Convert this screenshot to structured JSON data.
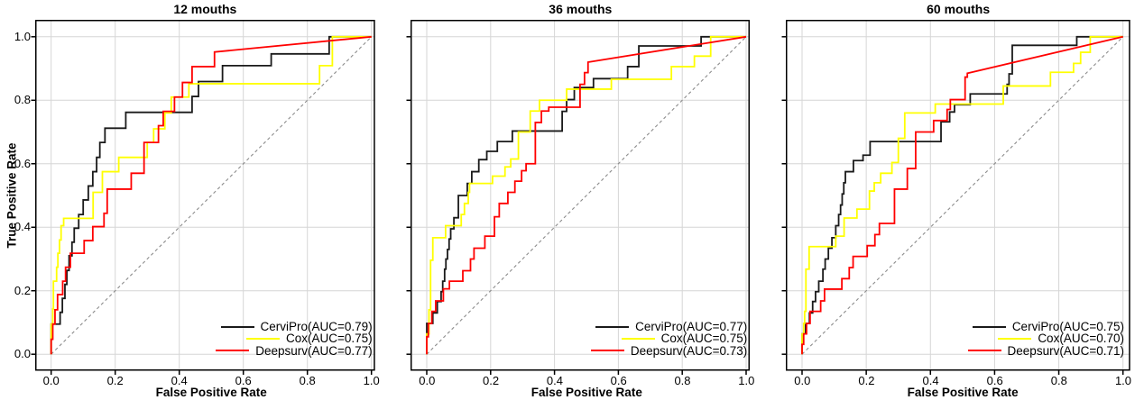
{
  "figure": {
    "x_axis_label": "False Positive Rate",
    "y_axis_label": "True Positive Rate",
    "x_tick_labels": [
      "0.0",
      "0.2",
      "0.4",
      "0.6",
      "0.8",
      "1.0"
    ],
    "y_tick_labels": [
      "0.0",
      "0.2",
      "0.4",
      "0.6",
      "0.8",
      "1.0"
    ],
    "background_color": "#ffffff",
    "grid_color": "#d6d6d6",
    "border_color": "#000000",
    "reference_line_color": "#8c8c8c",
    "series_colors": {
      "CerviPro": "#1a1a1a",
      "Cox": "#ffff00",
      "Deepsurv": "#ff0000"
    }
  },
  "chart_data": [
    {
      "type": "line",
      "title": "12 mouths",
      "xlabel": "False Positive Rate",
      "ylabel": "True Positive Rate",
      "xlim": [
        0,
        1
      ],
      "ylim": [
        0,
        1
      ],
      "grid": true,
      "diagonal_reference": true,
      "legend_position": "bottom-right",
      "series": [
        {
          "name": "CerviPro",
          "auc": 0.79,
          "legend_label": "CerviPro(AUC=0.79)",
          "color": "#1a1a1a",
          "step_points": [
            [
              0,
              0
            ],
            [
              0,
              0.095
            ],
            [
              0.028,
              0.132
            ],
            [
              0.035,
              0.176
            ],
            [
              0.043,
              0.22
            ],
            [
              0.049,
              0.264
            ],
            [
              0.056,
              0.31
            ],
            [
              0.065,
              0.353
            ],
            [
              0.072,
              0.397
            ],
            [
              0.086,
              0.44
            ],
            [
              0.1,
              0.486
            ],
            [
              0.116,
              0.53
            ],
            [
              0.13,
              0.575
            ],
            [
              0.142,
              0.62
            ],
            [
              0.152,
              0.667
            ],
            [
              0.168,
              0.712
            ],
            [
              0.233,
              0.762
            ],
            [
              0.44,
              0.812
            ],
            [
              0.46,
              0.859
            ],
            [
              0.535,
              0.909
            ],
            [
              0.687,
              0.946
            ],
            [
              0.868,
              1
            ],
            [
              1,
              1
            ]
          ]
        },
        {
          "name": "Cox",
          "auc": 0.75,
          "legend_label": "Cox(AUC=0.75)",
          "color": "#ffff00",
          "step_points": [
            [
              0,
              0
            ],
            [
              0,
              0.095
            ],
            [
              0.005,
              0.143
            ],
            [
              0.007,
              0.23
            ],
            [
              0.017,
              0.274
            ],
            [
              0.021,
              0.318
            ],
            [
              0.026,
              0.36
            ],
            [
              0.031,
              0.405
            ],
            [
              0.039,
              0.428
            ],
            [
              0.131,
              0.51
            ],
            [
              0.16,
              0.575
            ],
            [
              0.211,
              0.62
            ],
            [
              0.3,
              0.667
            ],
            [
              0.32,
              0.71
            ],
            [
              0.355,
              0.76
            ],
            [
              0.375,
              0.81
            ],
            [
              0.43,
              0.852
            ],
            [
              0.838,
              0.909
            ],
            [
              0.878,
              1
            ],
            [
              1,
              1
            ]
          ]
        },
        {
          "name": "Deepsurv",
          "auc": 0.77,
          "legend_label": "Deepsurv(AUC=0.77)",
          "color": "#ff0000",
          "step_points": [
            [
              0,
              0
            ],
            [
              0,
              0.047
            ],
            [
              0.005,
              0.095
            ],
            [
              0.012,
              0.14
            ],
            [
              0.02,
              0.188
            ],
            [
              0.036,
              0.23
            ],
            [
              0.045,
              0.274
            ],
            [
              0.06,
              0.318
            ],
            [
              0.103,
              0.358
            ],
            [
              0.13,
              0.402
            ],
            [
              0.165,
              0.444
            ],
            [
              0.175,
              0.52
            ],
            [
              0.25,
              0.57
            ],
            [
              0.29,
              0.667
            ],
            [
              0.335,
              0.72
            ],
            [
              0.35,
              0.765
            ],
            [
              0.385,
              0.81
            ],
            [
              0.41,
              0.856
            ],
            [
              0.44,
              0.906
            ],
            [
              0.51,
              0.952
            ]
          ],
          "tail_line_to": [
            1,
            1
          ]
        }
      ]
    },
    {
      "type": "line",
      "title": "36 mouths",
      "xlabel": "False Positive Rate",
      "ylabel": "True Positive Rate",
      "xlim": [
        0,
        1
      ],
      "ylim": [
        0,
        1
      ],
      "grid": true,
      "diagonal_reference": true,
      "legend_position": "bottom-right",
      "series": [
        {
          "name": "CerviPro",
          "auc": 0.77,
          "legend_label": "CerviPro(AUC=0.77)",
          "color": "#1a1a1a",
          "step_points": [
            [
              0,
              0
            ],
            [
              0,
              0.097
            ],
            [
              0.019,
              0.13
            ],
            [
              0.033,
              0.166
            ],
            [
              0.045,
              0.197
            ],
            [
              0.05,
              0.23
            ],
            [
              0.056,
              0.268
            ],
            [
              0.06,
              0.3
            ],
            [
              0.065,
              0.33
            ],
            [
              0.07,
              0.363
            ],
            [
              0.075,
              0.395
            ],
            [
              0.085,
              0.43
            ],
            [
              0.099,
              0.5
            ],
            [
              0.127,
              0.538
            ],
            [
              0.141,
              0.575
            ],
            [
              0.163,
              0.613
            ],
            [
              0.188,
              0.639
            ],
            [
              0.221,
              0.67
            ],
            [
              0.268,
              0.703
            ],
            [
              0.424,
              0.765
            ],
            [
              0.438,
              0.802
            ],
            [
              0.462,
              0.84
            ],
            [
              0.522,
              0.868
            ],
            [
              0.629,
              0.906
            ],
            [
              0.664,
              0.971
            ],
            [
              0.859,
              1
            ],
            [
              1,
              1
            ]
          ]
        },
        {
          "name": "Cox",
          "auc": 0.75,
          "legend_label": "Cox(AUC=0.75)",
          "color": "#ffff00",
          "step_points": [
            [
              0,
              0
            ],
            [
              0,
              0.064
            ],
            [
              0.007,
              0.14
            ],
            [
              0.012,
              0.296
            ],
            [
              0.019,
              0.367
            ],
            [
              0.059,
              0.405
            ],
            [
              0.108,
              0.44
            ],
            [
              0.118,
              0.475
            ],
            [
              0.13,
              0.51
            ],
            [
              0.134,
              0.538
            ],
            [
              0.206,
              0.561
            ],
            [
              0.245,
              0.59
            ],
            [
              0.263,
              0.615
            ],
            [
              0.287,
              0.7
            ],
            [
              0.324,
              0.766
            ],
            [
              0.353,
              0.8
            ],
            [
              0.438,
              0.835
            ],
            [
              0.578,
              0.866
            ],
            [
              0.766,
              0.906
            ],
            [
              0.838,
              0.939
            ],
            [
              0.889,
              1
            ],
            [
              1,
              1
            ]
          ]
        },
        {
          "name": "Deepsurv",
          "auc": 0.73,
          "legend_label": "Deepsurv(AUC=0.73)",
          "color": "#ff0000",
          "step_points": [
            [
              0,
              0
            ],
            [
              0,
              0.055
            ],
            [
              0.005,
              0.097
            ],
            [
              0.016,
              0.135
            ],
            [
              0.028,
              0.168
            ],
            [
              0.052,
              0.206
            ],
            [
              0.071,
              0.23
            ],
            [
              0.113,
              0.263
            ],
            [
              0.137,
              0.3
            ],
            [
              0.148,
              0.334
            ],
            [
              0.182,
              0.372
            ],
            [
              0.212,
              0.433
            ],
            [
              0.227,
              0.475
            ],
            [
              0.254,
              0.51
            ],
            [
              0.276,
              0.545
            ],
            [
              0.297,
              0.578
            ],
            [
              0.311,
              0.6
            ],
            [
              0.34,
              0.73
            ],
            [
              0.359,
              0.766
            ],
            [
              0.382,
              0.778
            ],
            [
              0.48,
              0.85
            ],
            [
              0.494,
              0.887
            ],
            [
              0.505,
              0.92
            ]
          ],
          "tail_line_to": [
            1,
            1
          ]
        }
      ]
    },
    {
      "type": "line",
      "title": "60 mouths",
      "xlabel": "False Positive Rate",
      "ylabel": "True Positive Rate",
      "xlim": [
        0,
        1
      ],
      "ylim": [
        0,
        1
      ],
      "grid": true,
      "diagonal_reference": true,
      "legend_position": "bottom-right",
      "series": [
        {
          "name": "CerviPro",
          "auc": 0.75,
          "legend_label": "CerviPro(AUC=0.75)",
          "color": "#1a1a1a",
          "step_points": [
            [
              0,
              0
            ],
            [
              0,
              0.064
            ],
            [
              0.011,
              0.097
            ],
            [
              0.023,
              0.13
            ],
            [
              0.033,
              0.166
            ],
            [
              0.042,
              0.197
            ],
            [
              0.052,
              0.23
            ],
            [
              0.065,
              0.268
            ],
            [
              0.072,
              0.3
            ],
            [
              0.082,
              0.334
            ],
            [
              0.093,
              0.367
            ],
            [
              0.105,
              0.405
            ],
            [
              0.114,
              0.44
            ],
            [
              0.12,
              0.47
            ],
            [
              0.125,
              0.505
            ],
            [
              0.13,
              0.54
            ],
            [
              0.135,
              0.575
            ],
            [
              0.16,
              0.61
            ],
            [
              0.19,
              0.627
            ],
            [
              0.212,
              0.67
            ],
            [
              0.433,
              0.732
            ],
            [
              0.46,
              0.763
            ],
            [
              0.475,
              0.786
            ],
            [
              0.524,
              0.82
            ],
            [
              0.639,
              0.85
            ],
            [
              0.645,
              0.883
            ],
            [
              0.655,
              0.973
            ],
            [
              0.856,
              1
            ],
            [
              1,
              1
            ]
          ]
        },
        {
          "name": "Cox",
          "auc": 0.7,
          "legend_label": "Cox(AUC=0.70)",
          "color": "#ffff00",
          "step_points": [
            [
              0,
              0
            ],
            [
              0,
              0.064
            ],
            [
              0.005,
              0.097
            ],
            [
              0.008,
              0.135
            ],
            [
              0.012,
              0.268
            ],
            [
              0.022,
              0.339
            ],
            [
              0.105,
              0.372
            ],
            [
              0.131,
              0.429
            ],
            [
              0.171,
              0.457
            ],
            [
              0.21,
              0.514
            ],
            [
              0.225,
              0.54
            ],
            [
              0.245,
              0.57
            ],
            [
              0.28,
              0.604
            ],
            [
              0.3,
              0.68
            ],
            [
              0.32,
              0.76
            ],
            [
              0.415,
              0.788
            ],
            [
              0.627,
              0.845
            ],
            [
              0.774,
              0.888
            ],
            [
              0.846,
              0.916
            ],
            [
              0.868,
              0.951
            ],
            [
              0.898,
              1
            ],
            [
              1,
              1
            ]
          ]
        },
        {
          "name": "Deepsurv",
          "auc": 0.71,
          "legend_label": "Deepsurv(AUC=0.71)",
          "color": "#ff0000",
          "step_points": [
            [
              0,
              0
            ],
            [
              0,
              0.031
            ],
            [
              0.005,
              0.064
            ],
            [
              0.014,
              0.097
            ],
            [
              0.025,
              0.135
            ],
            [
              0.058,
              0.168
            ],
            [
              0.07,
              0.205
            ],
            [
              0.124,
              0.238
            ],
            [
              0.147,
              0.273
            ],
            [
              0.159,
              0.308
            ],
            [
              0.203,
              0.342
            ],
            [
              0.227,
              0.377
            ],
            [
              0.241,
              0.412
            ],
            [
              0.288,
              0.52
            ],
            [
              0.328,
              0.585
            ],
            [
              0.354,
              0.7
            ],
            [
              0.41,
              0.736
            ],
            [
              0.452,
              0.771
            ],
            [
              0.462,
              0.802
            ],
            [
              0.508,
              0.873
            ],
            [
              0.515,
              0.885
            ]
          ],
          "tail_line_to": [
            1,
            1
          ]
        }
      ]
    }
  ]
}
